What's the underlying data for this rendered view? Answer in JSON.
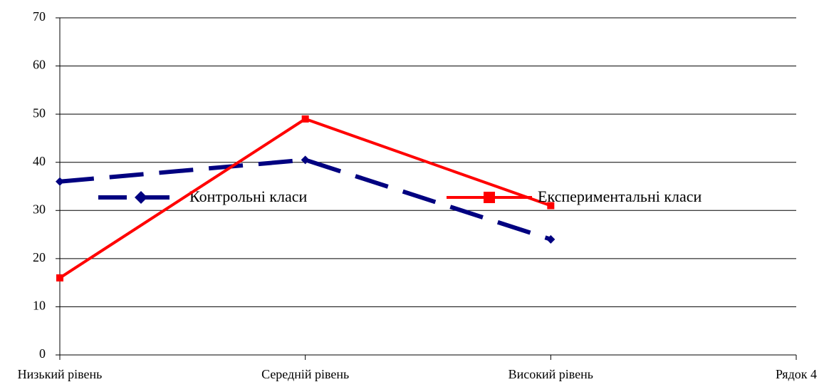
{
  "chart_data": {
    "type": "line",
    "categories": [
      "Низький рівень",
      "Середній рівень",
      "Високий рівень",
      "Рядок 4"
    ],
    "series": [
      {
        "name": "Контрольні класи",
        "color": "#000080",
        "dashed": true,
        "marker": "diamond",
        "values": [
          36,
          40.5,
          24,
          null
        ]
      },
      {
        "name": "Експериментальні класи",
        "color": "#ff0000",
        "dashed": false,
        "marker": "square",
        "values": [
          16,
          49,
          31,
          null
        ]
      }
    ],
    "ylim": [
      0,
      70
    ],
    "yticks": [
      0,
      10,
      20,
      30,
      40,
      50,
      60,
      70
    ],
    "grid": true
  }
}
